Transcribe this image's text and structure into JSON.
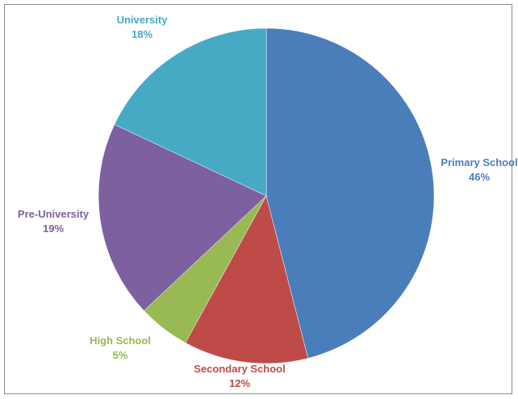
{
  "chart_data": {
    "type": "pie",
    "title": "",
    "slices": [
      {
        "name": "Primary School",
        "value": 46,
        "label": "46%",
        "color": "#4a7ebb"
      },
      {
        "name": "Secondary School",
        "value": 12,
        "label": "12%",
        "color": "#be4b48"
      },
      {
        "name": "High School",
        "value": 5,
        "label": "5%",
        "color": "#98b954"
      },
      {
        "name": "Pre-University",
        "value": 19,
        "label": "19%",
        "color": "#7d60a0"
      },
      {
        "name": "University",
        "value": 18,
        "label": "18%",
        "color": "#46aac5"
      }
    ],
    "start_angle": "12 o'clock",
    "direction": "clockwise",
    "legend": "none",
    "labels": "outside, category name and percentage"
  }
}
